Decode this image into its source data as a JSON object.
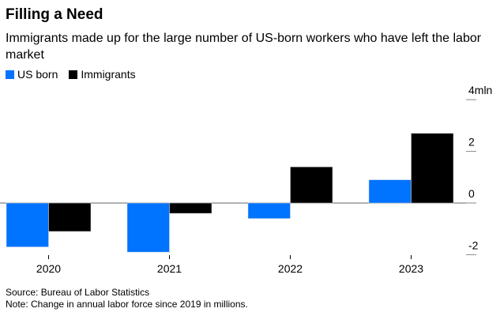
{
  "title": "Filling a Need",
  "subtitle": "Immigrants made up for the large number of US-born workers who have left the labor market",
  "source": "Source: Bureau of Labor Statistics",
  "note": "Note: Change in annual labor force since 2019 in millions.",
  "chart_data": {
    "type": "bar",
    "categories": [
      "2020",
      "2021",
      "2022",
      "2023"
    ],
    "series": [
      {
        "name": "US born",
        "color": "#0073ff",
        "values": [
          -1.7,
          -1.9,
          -0.6,
          0.9
        ]
      },
      {
        "name": "Immigrants",
        "color": "#000000",
        "values": [
          -1.1,
          -0.4,
          1.4,
          2.7
        ]
      }
    ],
    "ylim": [
      -2,
      4
    ],
    "yticks": [
      {
        "value": 4,
        "label": "4mln"
      },
      {
        "value": 2,
        "label": "2"
      },
      {
        "value": 0,
        "label": "0"
      },
      {
        "value": -2,
        "label": "-2"
      }
    ],
    "legend": "top-left",
    "grid": false
  }
}
